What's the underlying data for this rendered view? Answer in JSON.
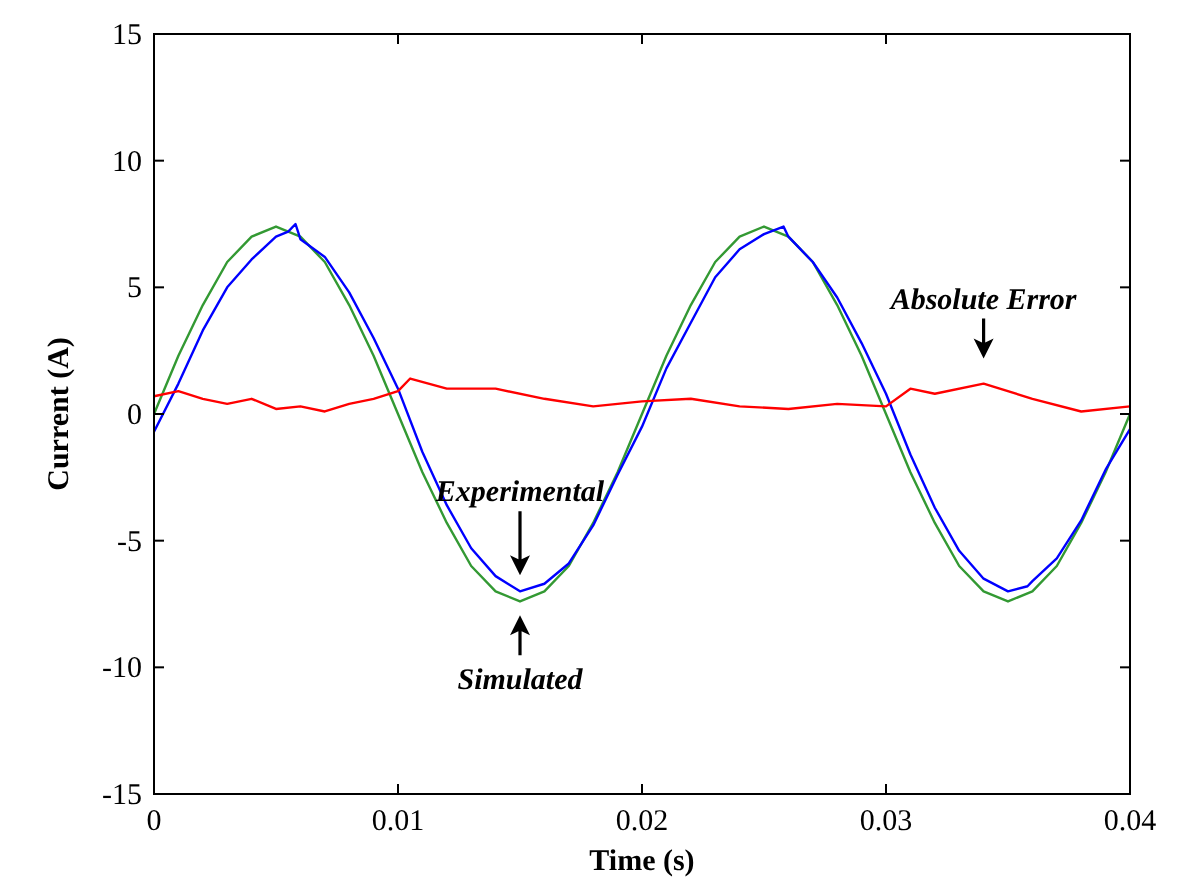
{
  "chart_data": {
    "type": "line",
    "xlabel": "Time (s)",
    "ylabel": "Current (A)",
    "xlim": [
      0,
      0.04
    ],
    "ylim": [
      -15,
      15
    ],
    "xticks": [
      0,
      0.01,
      0.02,
      0.03,
      0.04
    ],
    "yticks": [
      -15,
      -10,
      -5,
      0,
      5,
      10,
      15
    ],
    "grid": false,
    "marker": "none",
    "line_style": "solid",
    "series": [
      {
        "color": "#339933",
        "x": [
          0,
          0.001,
          0.002,
          0.003,
          0.004,
          0.005,
          0.006,
          0.007,
          0.008,
          0.009,
          0.01,
          0.011,
          0.012,
          0.013,
          0.014,
          0.015,
          0.016,
          0.017,
          0.018,
          0.019,
          0.02,
          0.021,
          0.022,
          0.023,
          0.024,
          0.025,
          0.026,
          0.027,
          0.028,
          0.029,
          0.03,
          0.031,
          0.032,
          0.033,
          0.034,
          0.035,
          0.036,
          0.037,
          0.038,
          0.039,
          0.04
        ],
        "values": [
          0,
          2.3,
          4.3,
          6,
          7,
          7.4,
          7,
          6,
          4.3,
          2.3,
          0,
          -2.3,
          -4.3,
          -6,
          -7,
          -7.4,
          -7,
          -6,
          -4.3,
          -2.3,
          0,
          2.3,
          4.3,
          6,
          7,
          7.4,
          7,
          6,
          4.3,
          2.3,
          0,
          -2.3,
          -4.3,
          -6,
          -7,
          -7.4,
          -7,
          -6,
          -4.3,
          -2.3,
          0
        ]
      },
      {
        "color": "#0000ff",
        "x": [
          0,
          0.001,
          0.002,
          0.003,
          0.004,
          0.005,
          0.0055,
          0.0058,
          0.006,
          0.007,
          0.008,
          0.009,
          0.01,
          0.011,
          0.012,
          0.013,
          0.014,
          0.015,
          0.016,
          0.017,
          0.018,
          0.019,
          0.02,
          0.021,
          0.022,
          0.023,
          0.024,
          0.025,
          0.0258,
          0.026,
          0.027,
          0.028,
          0.029,
          0.03,
          0.031,
          0.032,
          0.033,
          0.034,
          0.035,
          0.0358,
          0.036,
          0.037,
          0.038,
          0.039,
          0.04
        ],
        "values": [
          -0.7,
          1.2,
          3.3,
          5,
          6.1,
          7,
          7.2,
          7.5,
          6.9,
          6.2,
          4.8,
          3,
          1,
          -1.5,
          -3.6,
          -5.3,
          -6.4,
          -7,
          -6.7,
          -5.9,
          -4.4,
          -2.4,
          -0.5,
          1.8,
          3.6,
          5.4,
          6.5,
          7.1,
          7.4,
          7,
          6,
          4.6,
          2.8,
          0.8,
          -1.6,
          -3.7,
          -5.4,
          -6.5,
          -7,
          -6.8,
          -6.6,
          -5.7,
          -4.2,
          -2.2,
          -0.6
        ]
      },
      {
        "color": "#ff0000",
        "x": [
          0,
          0.001,
          0.002,
          0.003,
          0.004,
          0.005,
          0.006,
          0.007,
          0.008,
          0.009,
          0.01,
          0.0105,
          0.012,
          0.014,
          0.016,
          0.018,
          0.02,
          0.022,
          0.024,
          0.026,
          0.028,
          0.03,
          0.031,
          0.032,
          0.034,
          0.036,
          0.038,
          0.04
        ],
        "values": [
          0.7,
          0.9,
          0.6,
          0.4,
          0.6,
          0.2,
          0.3,
          0.1,
          0.4,
          0.6,
          0.9,
          1.4,
          1,
          1,
          0.6,
          0.3,
          0.5,
          0.6,
          0.3,
          0.2,
          0.4,
          0.3,
          1,
          0.8,
          1.2,
          0.6,
          0.1,
          0.3
        ]
      }
    ],
    "annotations": [
      "Experimental",
      "Simulated",
      "Absolute Error"
    ]
  }
}
